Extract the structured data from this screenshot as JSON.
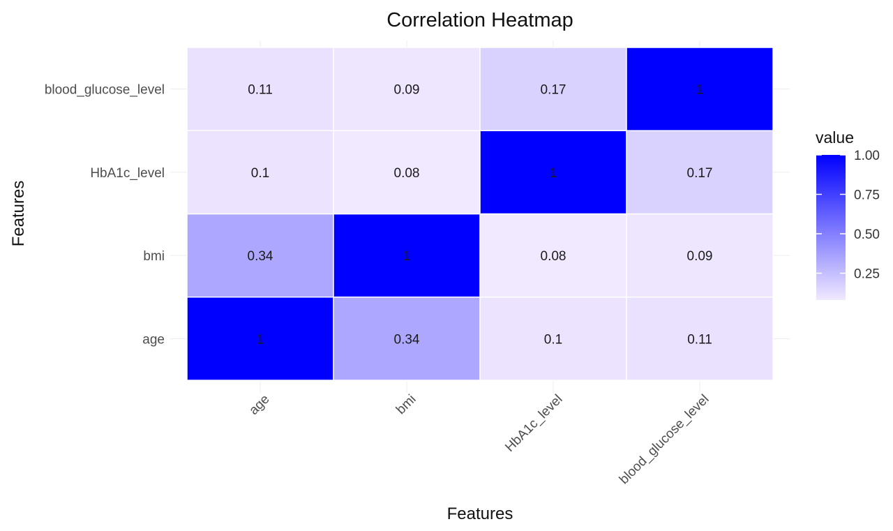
{
  "chart_data": {
    "type": "heatmap",
    "title": "Correlation Heatmap",
    "xlabel": "Features",
    "ylabel": "Features",
    "x_categories": [
      "age",
      "bmi",
      "HbA1c_level",
      "blood_glucose_level"
    ],
    "y_categories": [
      "age",
      "bmi",
      "HbA1c_level",
      "blood_glucose_level"
    ],
    "values": [
      [
        1,
        0.34,
        0.1,
        0.11
      ],
      [
        0.34,
        1,
        0.08,
        0.09
      ],
      [
        0.1,
        0.08,
        1,
        0.17
      ],
      [
        0.11,
        0.09,
        0.17,
        1
      ]
    ],
    "cell_labels": [
      [
        "1",
        "0.34",
        "0.1",
        "0.11"
      ],
      [
        "0.34",
        "1",
        "0.08",
        "0.09"
      ],
      [
        "0.1",
        "0.08",
        "1",
        "0.17"
      ],
      [
        "0.11",
        "0.09",
        "0.17",
        "1"
      ]
    ],
    "legend": {
      "title": "value",
      "ticks": [
        1.0,
        0.75,
        0.5,
        0.25
      ],
      "tick_labels": [
        "1.00",
        "0.75",
        "0.50",
        "0.25"
      ],
      "range": [
        0.08,
        1.0
      ],
      "placement": "right"
    },
    "color_scale": {
      "low": "#f1e9ff",
      "high": "#0000ff"
    },
    "grid": true
  }
}
